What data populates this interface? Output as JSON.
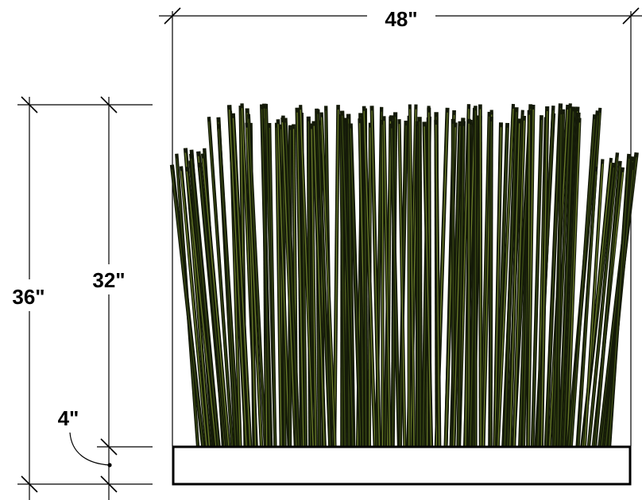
{
  "dimensions": {
    "width_label": "48\"",
    "overall_height_label": "36\"",
    "grass_height_label": "32\"",
    "base_height_label": "4\""
  },
  "colors": {
    "line": "#000000",
    "grass_dark": "#141a08",
    "grass_mid": "#3a4a14",
    "grass_light": "#6b7d2a",
    "base_fill": "#ffffff"
  }
}
